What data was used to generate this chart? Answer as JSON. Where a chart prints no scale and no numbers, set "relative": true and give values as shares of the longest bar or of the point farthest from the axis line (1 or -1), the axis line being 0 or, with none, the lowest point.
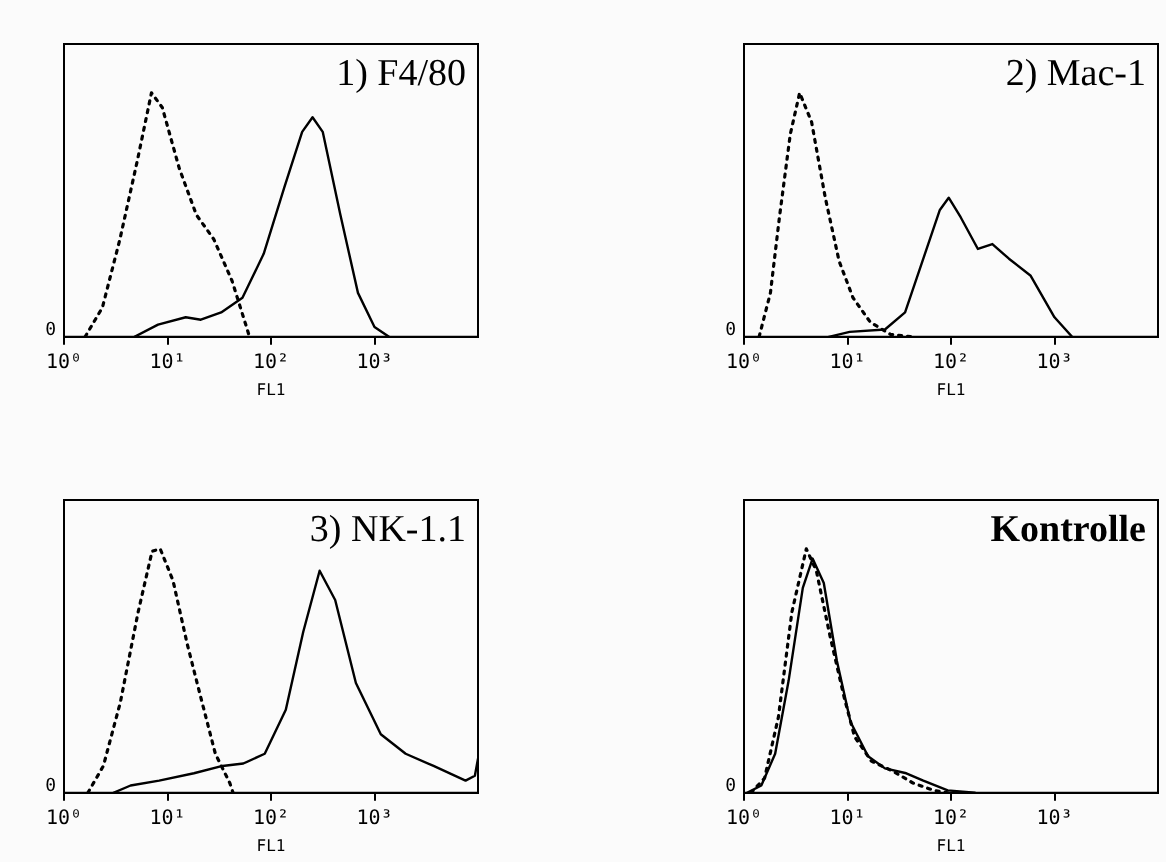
{
  "chart_data": [
    {
      "type": "line",
      "title": "1) F4/80",
      "xlabel": "FL1",
      "relative": true,
      "log": "x",
      "xlim": [
        1,
        10000
      ],
      "xticks": [
        {
          "value": 1,
          "label": "10⁰"
        },
        {
          "value": 10,
          "label": "10¹"
        },
        {
          "value": 100,
          "label": "10²"
        },
        {
          "value": 1000,
          "label": "10³"
        }
      ],
      "annotations": [
        "0"
      ],
      "legend": false,
      "series": [
        {
          "color": "#000000",
          "line_style": "dotted",
          "x": [
            1.6,
            2.35,
            3.47,
            5.1,
            7,
            8.9,
            13,
            19,
            28,
            42,
            57,
            62
          ],
          "values": [
            0,
            0.12,
            0.4,
            0.72,
            1,
            0.94,
            0.69,
            0.5,
            0.4,
            0.23,
            0.05,
            0
          ]
        },
        {
          "color": "#000000",
          "line_style": "solid",
          "x": [
            4.8,
            8.1,
            15,
            21,
            33,
            53,
            85,
            134,
            200,
            252,
            316,
            468,
            692,
            1000,
            1380
          ],
          "values": [
            0,
            0.05,
            0.08,
            0.07,
            0.1,
            0.16,
            0.34,
            0.61,
            0.84,
            0.9,
            0.84,
            0.5,
            0.18,
            0.04,
            0
          ]
        }
      ]
    },
    {
      "type": "line",
      "title": "2) Mac-1",
      "xlabel": "FL1",
      "relative": true,
      "log": "x",
      "xlim": [
        1,
        10000
      ],
      "xticks": [
        {
          "value": 1,
          "label": "10⁰"
        },
        {
          "value": 10,
          "label": "10¹"
        },
        {
          "value": 100,
          "label": "10²"
        },
        {
          "value": 1000,
          "label": "10³"
        }
      ],
      "annotations": [
        "0"
      ],
      "legend": false,
      "series": [
        {
          "color": "#000000",
          "line_style": "dotted",
          "x": [
            1.4,
            1.8,
            2.2,
            2.8,
            3.45,
            4.5,
            6.1,
            8.3,
            11.3,
            16.6,
            26,
            42
          ],
          "values": [
            0,
            0.18,
            0.49,
            0.83,
            1,
            0.88,
            0.57,
            0.31,
            0.16,
            0.06,
            0.01,
            0
          ]
        },
        {
          "color": "#000000",
          "line_style": "solid",
          "x": [
            6.6,
            10.5,
            23,
            36,
            53,
            78,
            95,
            124,
            182,
            251,
            363,
            589,
            1000,
            1480
          ],
          "values": [
            0,
            0.02,
            0.03,
            0.1,
            0.31,
            0.52,
            0.57,
            0.49,
            0.36,
            0.38,
            0.32,
            0.25,
            0.08,
            0
          ]
        }
      ]
    },
    {
      "type": "line",
      "title": "3) NK-1.1",
      "xlabel": "FL1",
      "relative": true,
      "log": "x",
      "xlim": [
        1,
        10000
      ],
      "xticks": [
        {
          "value": 1,
          "label": "10⁰"
        },
        {
          "value": 10,
          "label": "10¹"
        },
        {
          "value": 100,
          "label": "10²"
        },
        {
          "value": 1000,
          "label": "10³"
        }
      ],
      "annotations": [
        "0"
      ],
      "legend": false,
      "series": [
        {
          "color": "#000000",
          "line_style": "dotted",
          "x": [
            1.7,
            2.4,
            3.5,
            5.2,
            7.1,
            8.5,
            11.3,
            15.5,
            21,
            29,
            40,
            43
          ],
          "values": [
            0,
            0.11,
            0.37,
            0.74,
            0.99,
            1,
            0.87,
            0.61,
            0.39,
            0.16,
            0.04,
            0
          ]
        },
        {
          "color": "#000000",
          "line_style": "solid",
          "x": [
            3,
            4.4,
            8.3,
            18,
            34,
            54,
            87,
            139,
            205,
            295,
            417,
            661,
            1150,
            2000,
            3720,
            7580,
            9330,
            10000
          ],
          "values": [
            0,
            0.03,
            0.05,
            0.08,
            0.11,
            0.12,
            0.16,
            0.34,
            0.66,
            0.91,
            0.79,
            0.45,
            0.24,
            0.16,
            0.11,
            0.05,
            0.07,
            0.14
          ]
        }
      ]
    },
    {
      "type": "line",
      "title": "Kontrolle",
      "xlabel": "FL1",
      "relative": true,
      "log": "x",
      "xlim": [
        1,
        10000
      ],
      "xticks": [
        {
          "value": 1,
          "label": "10⁰"
        },
        {
          "value": 10,
          "label": "10¹"
        },
        {
          "value": 100,
          "label": "10²"
        },
        {
          "value": 1000,
          "label": "10³"
        }
      ],
      "annotations": [
        "0"
      ],
      "legend": false,
      "series": [
        {
          "color": "#000000",
          "line_style": "dotted",
          "x": [
            1.17,
            1.58,
            2.15,
            2.9,
            4,
            5,
            6.8,
            9.3,
            11.7,
            17,
            27,
            43,
            68,
            93
          ],
          "values": [
            0,
            0.06,
            0.31,
            0.74,
            1,
            0.91,
            0.64,
            0.39,
            0.23,
            0.13,
            0.09,
            0.04,
            0.01,
            0
          ]
        },
        {
          "color": "#000000",
          "line_style": "solid",
          "x": [
            1.07,
            1.47,
            2,
            2.7,
            3.7,
            4.6,
            5.9,
            7.9,
            10.7,
            15.8,
            23,
            37,
            54,
            93,
            170
          ],
          "values": [
            0,
            0.03,
            0.16,
            0.46,
            0.84,
            0.96,
            0.86,
            0.54,
            0.29,
            0.15,
            0.1,
            0.08,
            0.05,
            0.01,
            0
          ]
        }
      ]
    }
  ]
}
